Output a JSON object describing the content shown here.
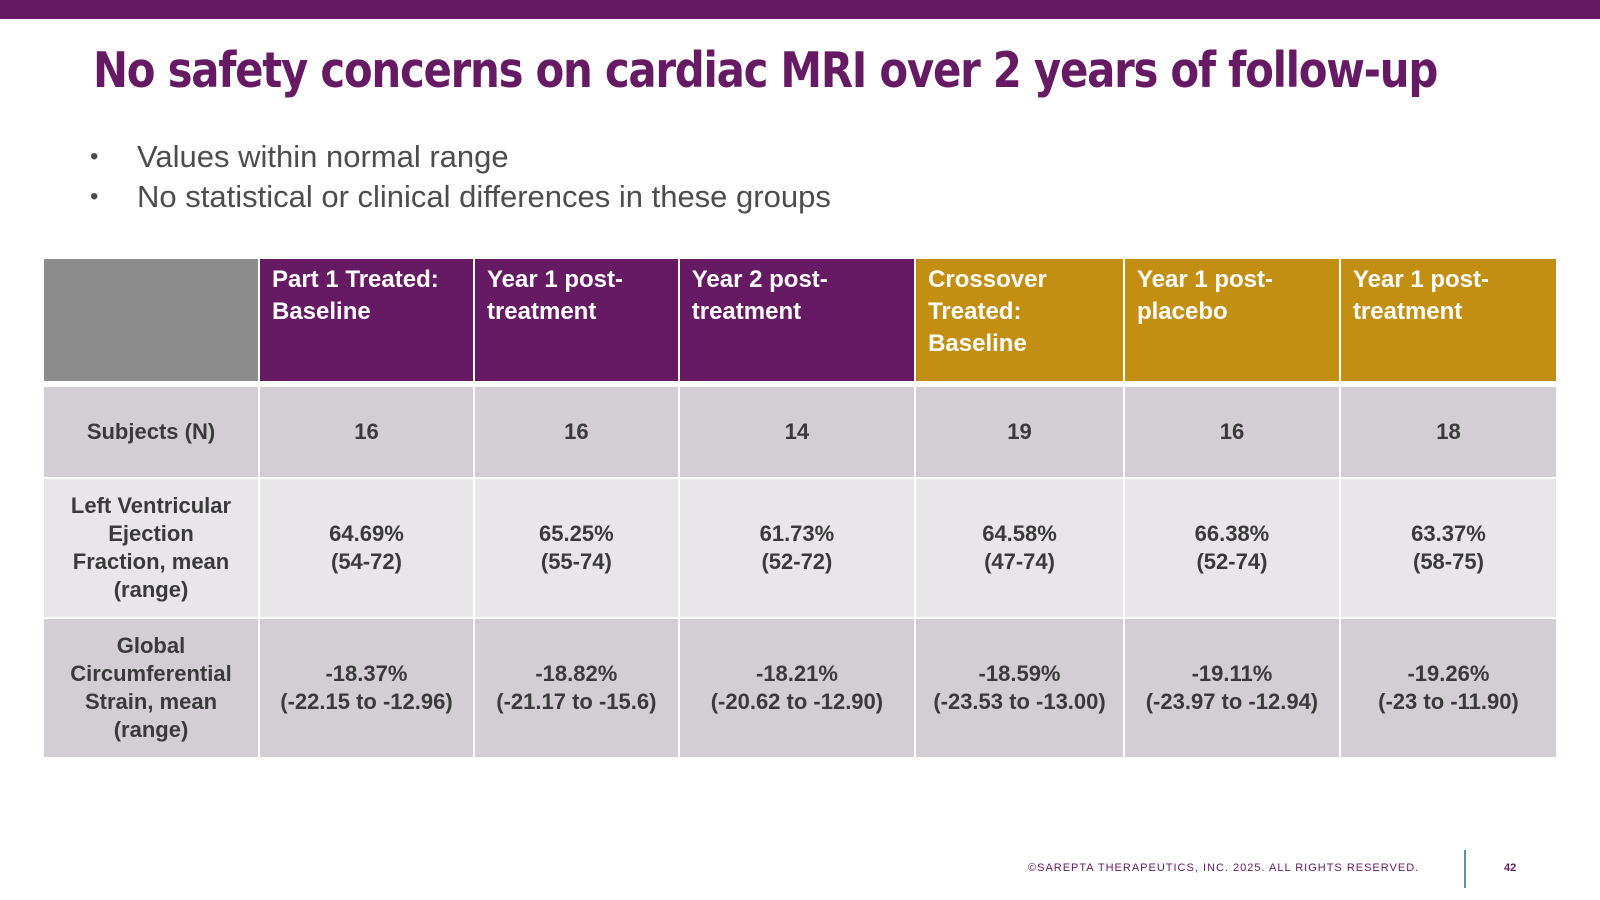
{
  "title": "No safety concerns on cardiac MRI over 2 years of follow-up",
  "bullets": [
    "Values within normal range",
    "No statistical or clinical differences in these groups"
  ],
  "table": {
    "headers": [
      "",
      "Part 1 Treated: Baseline",
      "Year 1 post-treatment",
      "Year 2 post-treatment",
      "Crossover Treated: Baseline",
      "Year 1 post-placebo",
      "Year 1 post-treatment"
    ],
    "header_lines": [
      [],
      [
        "Part 1 Treated:",
        "Baseline"
      ],
      [
        "Year 1 post-",
        "treatment"
      ],
      [
        "Year 2 post-",
        "treatment"
      ],
      [
        "Crossover",
        "Treated:",
        "Baseline"
      ],
      [
        "Year 1 post-",
        "placebo"
      ],
      [
        "Year 1 post-",
        "treatment"
      ]
    ],
    "rows": [
      {
        "label": "Subjects (N)",
        "label_lines": [
          "Subjects (N)"
        ],
        "values": [
          {
            "value": "16"
          },
          {
            "value": "16"
          },
          {
            "value": "14"
          },
          {
            "value": "19"
          },
          {
            "value": "16"
          },
          {
            "value": "18"
          }
        ]
      },
      {
        "label": "Left Ventricular Ejection Fraction, mean (range)",
        "label_lines": [
          "Left Ventricular",
          "Ejection",
          "Fraction, mean",
          "(range)"
        ],
        "values": [
          {
            "value": "64.69%",
            "range": "(54-72)"
          },
          {
            "value": "65.25%",
            "range": "(55-74)"
          },
          {
            "value": "61.73%",
            "range": "(52-72)"
          },
          {
            "value": "64.58%",
            "range": "(47-74)"
          },
          {
            "value": "66.38%",
            "range": "(52-74)"
          },
          {
            "value": "63.37%",
            "range": "(58-75)"
          }
        ]
      },
      {
        "label": "Global Circumferential Strain, mean (range)",
        "label_lines": [
          "Global",
          "Circumferential",
          "Strain, mean",
          "(range)"
        ],
        "values": [
          {
            "value": "-18.37%",
            "range": "(-22.15 to -12.96)"
          },
          {
            "value": "-18.82%",
            "range": "(-21.17 to -15.6)"
          },
          {
            "value": "-18.21%",
            "range": "(-20.62 to -12.90)"
          },
          {
            "value": "-18.59%",
            "range": "(-23.53 to -13.00)"
          },
          {
            "value": "-19.11%",
            "range": "(-23.97 to -12.94)"
          },
          {
            "value": "-19.26%",
            "range": "(-23 to -11.90)"
          }
        ]
      }
    ]
  },
  "footer": {
    "copyright": "©SAREPTA THERAPEUTICS, INC. 2025.  ALL RIGHTS RESERVED.",
    "page_number": "42"
  },
  "colors": {
    "purple": "#661a63",
    "gold": "#c38f12",
    "header_gray": "#8c8c8c",
    "row_dark": "#d3ced3",
    "row_light": "#e8e6e9",
    "text_gray": "#4d4d4d",
    "divider_blue": "#5b8fb8"
  }
}
